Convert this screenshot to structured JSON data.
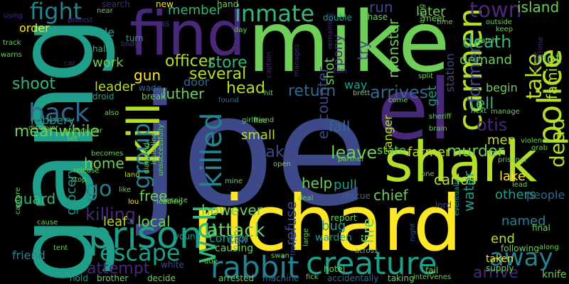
{
  "background": "#000000",
  "palette": {
    "yellow": "#fde725",
    "lime": "#b5de2b",
    "green": "#6ece58",
    "lightgreen": "#35b779",
    "teal": "#1f9e89",
    "cyan": "#26828e",
    "blue": "#31688e",
    "indigo": "#3e4989",
    "purple": "#482878",
    "dark": "#440154"
  },
  "words": [
    {
      "text": "joe",
      "color": "indigo"
    },
    {
      "text": "mike",
      "color": "green"
    },
    {
      "text": "gang",
      "color": "teal"
    },
    {
      "text": "richard",
      "color": "yellow"
    },
    {
      "text": "find",
      "color": "purple"
    },
    {
      "text": "el",
      "color": "purple"
    },
    {
      "text": "shark",
      "color": "lime"
    },
    {
      "text": "kill",
      "color": "lime"
    },
    {
      "text": "carmen",
      "color": "lime"
    },
    {
      "text": "police",
      "color": "lime"
    },
    {
      "text": "prison",
      "color": "teal"
    },
    {
      "text": "creature",
      "color": "teal"
    },
    {
      "text": "rabbit",
      "color": "cyan"
    },
    {
      "text": "escape",
      "color": "teal"
    },
    {
      "text": "inmate",
      "color": "lightgreen"
    },
    {
      "text": "fight",
      "color": "cyan"
    },
    {
      "text": "town",
      "color": "purple"
    },
    {
      "text": "killed",
      "color": "cyan"
    },
    {
      "text": "group",
      "color": "cyan"
    },
    {
      "text": "away",
      "color": "cyan"
    },
    {
      "text": "well",
      "color": "lightgreen"
    },
    {
      "text": "back",
      "color": "blue"
    },
    {
      "text": "dead",
      "color": "lime"
    },
    {
      "text": "take",
      "color": "lime"
    },
    {
      "text": "death",
      "color": "lightgreen"
    },
    {
      "text": "attack",
      "color": "green"
    },
    {
      "text": "leave",
      "color": "green"
    },
    {
      "text": "fall",
      "color": "blue"
    },
    {
      "text": "encounter",
      "color": "indigo"
    },
    {
      "text": "arrives",
      "color": "blue"
    },
    {
      "text": "return",
      "color": "blue"
    },
    {
      "text": "go",
      "color": "cyan"
    },
    {
      "text": "head",
      "color": "lime"
    },
    {
      "text": "officer",
      "color": "lime"
    },
    {
      "text": "luther",
      "color": "green"
    },
    {
      "text": "store",
      "color": "lightgreen"
    },
    {
      "text": "several",
      "color": "lime"
    },
    {
      "text": "shoot",
      "color": "lightgreen"
    },
    {
      "text": "meanwhile",
      "color": "green"
    },
    {
      "text": "home",
      "color": "green"
    },
    {
      "text": "killing",
      "color": "purple"
    },
    {
      "text": "attempt",
      "color": "purple"
    },
    {
      "text": "free",
      "color": "green"
    },
    {
      "text": "local",
      "color": "green"
    },
    {
      "text": "however",
      "color": "green"
    },
    {
      "text": "help",
      "color": "green"
    },
    {
      "text": "make",
      "color": "indigo"
    },
    {
      "text": "arrive",
      "color": "purple"
    },
    {
      "text": "murder",
      "color": "green"
    },
    {
      "text": "fire",
      "color": "green"
    },
    {
      "text": "chief",
      "color": "green"
    },
    {
      "text": "state",
      "color": "green"
    },
    {
      "text": "otis",
      "color": "purple"
    },
    {
      "text": "tell",
      "color": "lightgreen"
    },
    {
      "text": "former",
      "color": "indigo"
    },
    {
      "text": "demand",
      "color": "green"
    },
    {
      "text": "member",
      "color": "lightgreen"
    },
    {
      "text": "island",
      "color": "green"
    },
    {
      "text": "riot",
      "color": "green"
    },
    {
      "text": "family",
      "color": "lime"
    },
    {
      "text": "later",
      "color": "green"
    },
    {
      "text": "monster",
      "color": "green"
    },
    {
      "text": "shot",
      "color": "green"
    },
    {
      "text": "pony",
      "color": "purple"
    },
    {
      "text": "try",
      "color": "indigo"
    },
    {
      "text": "way",
      "color": "teal"
    },
    {
      "text": "run",
      "color": "indigo"
    },
    {
      "text": "order",
      "color": "yellow"
    },
    {
      "text": "hole",
      "color": "teal"
    },
    {
      "text": "work",
      "color": "green"
    },
    {
      "text": "leader",
      "color": "lime"
    },
    {
      "text": "gun",
      "color": "yellow"
    },
    {
      "text": "door",
      "color": "blue"
    },
    {
      "text": "robbery",
      "color": "teal"
    },
    {
      "text": "guard",
      "color": "lightgreen"
    },
    {
      "text": "friend",
      "color": "cyan"
    },
    {
      "text": "grocery",
      "color": "teal"
    },
    {
      "text": "leaf",
      "color": "lime"
    },
    {
      "text": "control",
      "color": "teal"
    },
    {
      "text": "call",
      "color": "blue"
    },
    {
      "text": "causing",
      "color": "green"
    },
    {
      "text": "refuse",
      "color": "indigo"
    },
    {
      "text": "bug",
      "color": "teal"
    },
    {
      "text": "warden",
      "color": "teal"
    },
    {
      "text": "pull",
      "color": "teal"
    },
    {
      "text": "small",
      "color": "lime"
    },
    {
      "text": "carlos",
      "color": "lime"
    },
    {
      "text": "ranger",
      "color": "lime"
    },
    {
      "text": "farmer",
      "color": "lime"
    },
    {
      "text": "men",
      "color": "lime"
    },
    {
      "text": "water",
      "color": "teal"
    },
    {
      "text": "end",
      "color": "lime"
    },
    {
      "text": "named",
      "color": "cyan"
    },
    {
      "text": "others",
      "color": "teal"
    },
    {
      "text": "people",
      "color": "blue"
    },
    {
      "text": "lake",
      "color": "yellow"
    },
    {
      "text": "begin",
      "color": "green"
    },
    {
      "text": "get",
      "color": "teal"
    },
    {
      "text": "station",
      "color": "indigo"
    },
    {
      "text": "new",
      "color": "yellow"
    },
    {
      "text": "search",
      "color": "purple"
    },
    {
      "text": "hand",
      "color": "green"
    },
    {
      "text": "gas",
      "color": "purple"
    },
    {
      "text": "knife",
      "color": "green"
    },
    {
      "text": "taking",
      "color": "green"
    },
    {
      "text": "fail",
      "color": "green"
    },
    {
      "text": "taken",
      "color": "yellow"
    },
    {
      "text": "supply",
      "color": "green"
    },
    {
      "text": "final",
      "color": "green"
    },
    {
      "text": "hold",
      "color": "teal"
    },
    {
      "text": "brother",
      "color": "green"
    },
    {
      "text": "decide",
      "color": "green"
    },
    {
      "text": "arrested",
      "color": "green"
    },
    {
      "text": "machine",
      "color": "blue"
    },
    {
      "text": "accidentally",
      "color": "blue"
    },
    {
      "text": "white",
      "color": "indigo"
    },
    {
      "text": "young",
      "color": "teal"
    },
    {
      "text": "lord",
      "color": "indigo"
    },
    {
      "text": "rescue",
      "color": "blue"
    },
    {
      "text": "report",
      "color": "green"
    },
    {
      "text": "hotel",
      "color": "green"
    },
    {
      "text": "following",
      "color": "green"
    },
    {
      "text": "eventually",
      "color": "teal"
    },
    {
      "text": "wade",
      "color": "blue"
    },
    {
      "text": "break",
      "color": "green"
    },
    {
      "text": "turn",
      "color": "teal"
    },
    {
      "text": "hall",
      "color": "lightgreen"
    },
    {
      "text": "android",
      "color": "teal"
    },
    {
      "text": "also",
      "color": "green"
    },
    {
      "text": "discover",
      "color": "green"
    },
    {
      "text": "give",
      "color": "green"
    },
    {
      "text": "set",
      "color": "green"
    },
    {
      "text": "becomes",
      "color": "green"
    },
    {
      "text": "release",
      "color": "green"
    },
    {
      "text": "stop",
      "color": "green"
    },
    {
      "text": "land",
      "color": "lime"
    },
    {
      "text": "lou",
      "color": "yellow"
    },
    {
      "text": "mine",
      "color": "green"
    },
    {
      "text": "due",
      "color": "green"
    },
    {
      "text": "using",
      "color": "purple"
    },
    {
      "text": "protest",
      "color": "purple"
    },
    {
      "text": "body",
      "color": "purple"
    },
    {
      "text": "near",
      "color": "green"
    },
    {
      "text": "day",
      "color": "green"
    },
    {
      "text": "double",
      "color": "teal"
    },
    {
      "text": "chase",
      "color": "green"
    },
    {
      "text": "meet",
      "color": "green"
    },
    {
      "text": "time",
      "color": "green"
    },
    {
      "text": "split",
      "color": "green"
    },
    {
      "text": "hit",
      "color": "green"
    },
    {
      "text": "brett",
      "color": "green"
    },
    {
      "text": "come",
      "color": "green"
    },
    {
      "text": "flee",
      "color": "green"
    },
    {
      "text": "found",
      "color": "blue"
    },
    {
      "text": "girlfriend",
      "color": "green"
    },
    {
      "text": "sheriff",
      "color": "green"
    },
    {
      "text": "next",
      "color": "green"
    },
    {
      "text": "manage",
      "color": "green"
    },
    {
      "text": "violence",
      "color": "green"
    },
    {
      "text": "grab",
      "color": "green"
    },
    {
      "text": "brain",
      "color": "green"
    },
    {
      "text": "watch",
      "color": "green"
    },
    {
      "text": "keep",
      "color": "green"
    },
    {
      "text": "outside",
      "color": "green"
    },
    {
      "text": "track",
      "color": "green"
    },
    {
      "text": "warns",
      "color": "green"
    },
    {
      "text": "cause",
      "color": "green"
    },
    {
      "text": "partner",
      "color": "green"
    },
    {
      "text": "deal",
      "color": "green"
    },
    {
      "text": "across",
      "color": "green"
    },
    {
      "text": "intervenes",
      "color": "green"
    },
    {
      "text": "owner",
      "color": "green"
    },
    {
      "text": "open",
      "color": "green"
    },
    {
      "text": "one",
      "color": "green"
    },
    {
      "text": "prisoner",
      "color": "green"
    },
    {
      "text": "captain",
      "color": "purple"
    },
    {
      "text": "manages",
      "color": "purple"
    },
    {
      "text": "remaining",
      "color": "purple"
    },
    {
      "text": "leaving",
      "color": "green"
    },
    {
      "text": "crime",
      "color": "purple"
    },
    {
      "text": "house",
      "color": "purple"
    },
    {
      "text": "car",
      "color": "purple"
    },
    {
      "text": "film",
      "color": "purple"
    },
    {
      "text": "tent",
      "color": "green"
    },
    {
      "text": "capture",
      "color": "green"
    },
    {
      "text": "trooper",
      "color": "indigo"
    },
    {
      "text": "large",
      "color": "green"
    },
    {
      "text": "swan",
      "color": "green"
    },
    {
      "text": "night",
      "color": "indigo"
    },
    {
      "text": "unsuccessfully",
      "color": "green"
    },
    {
      "text": "diamond",
      "color": "green"
    },
    {
      "text": "including",
      "color": "green"
    },
    {
      "text": "despite",
      "color": "green"
    },
    {
      "text": "leading",
      "color": "green"
    },
    {
      "text": "along",
      "color": "green"
    },
    {
      "text": "lead",
      "color": "green"
    },
    {
      "text": "like",
      "color": "green"
    },
    {
      "text": "fick",
      "color": "green"
    }
  ]
}
